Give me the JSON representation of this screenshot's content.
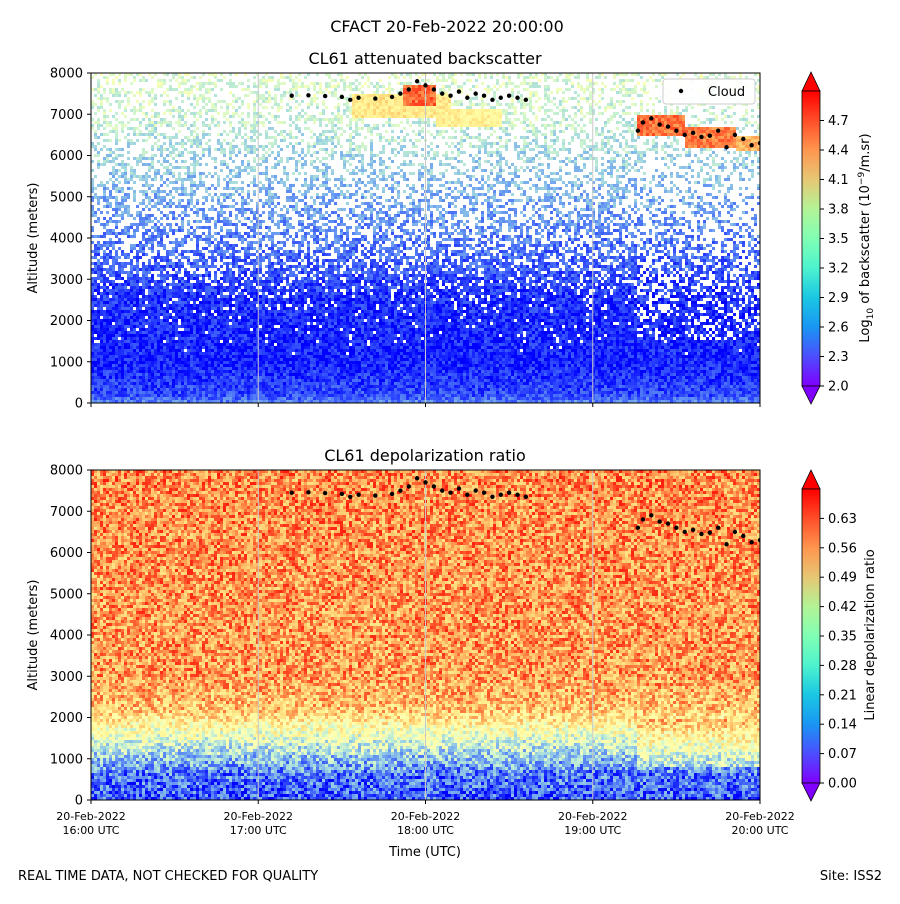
{
  "figure": {
    "suptitle": "CFACT 20-Feb-2022 20:00:00",
    "footer_left": "REAL TIME DATA, NOT CHECKED FOR QUALITY",
    "footer_right": "Site: ISS2"
  },
  "chart_data": [
    {
      "type": "heatmap",
      "title": "CL61 attenuated backscatter",
      "xlabel": "",
      "ylabel": "Altitude (meters)",
      "xlim": [
        16.0,
        20.0
      ],
      "ylim": [
        0,
        8000
      ],
      "x_ticks": [
        16,
        17,
        18,
        19,
        20
      ],
      "x_tick_labels": [
        [
          "20-Feb-2022",
          "16:00 UTC"
        ],
        [
          "20-Feb-2022",
          "17:00 UTC"
        ],
        [
          "20-Feb-2022",
          "18:00 UTC"
        ],
        [
          "20-Feb-2022",
          "19:00 UTC"
        ],
        [
          "20-Feb-2022",
          "20:00 UTC"
        ]
      ],
      "y_ticks": [
        0,
        1000,
        2000,
        3000,
        4000,
        5000,
        6000,
        7000,
        8000
      ],
      "y_tick_labels": [
        "0",
        "1000",
        "2000",
        "3000",
        "4000",
        "5000",
        "6000",
        "7000",
        "8000"
      ],
      "grid": "vertical",
      "legend": {
        "entries": [
          "Cloud"
        ],
        "placement": "top-right"
      },
      "colorbar": {
        "label_main": "Log",
        "label_sub": "10",
        "label_rest": " of backscatter (10",
        "label_sup": "−9",
        "label_end": "/m.sr)",
        "vmin": 2.0,
        "vmax": 5.0,
        "colormap": "rainbow",
        "ticks": [
          2.0,
          2.3,
          2.6,
          2.9,
          3.2,
          3.5,
          3.8,
          4.1,
          4.4,
          4.7
        ],
        "tick_labels": [
          "2.0",
          "2.3",
          "2.6",
          "2.9",
          "3.2",
          "3.5",
          "3.8",
          "4.1",
          "4.4",
          "4.7"
        ]
      },
      "field_profile": [
        {
          "alt": 0,
          "value": 2.55,
          "coverage": 1.0
        },
        {
          "alt": 200,
          "value": 2.28,
          "coverage": 1.0
        },
        {
          "alt": 1000,
          "value": 2.12,
          "coverage": 1.0
        },
        {
          "alt": 2500,
          "value": 2.18,
          "coverage": 0.9
        },
        {
          "alt": 4000,
          "value": 2.5,
          "coverage": 0.55
        },
        {
          "alt": 5500,
          "value": 2.85,
          "coverage": 0.42
        },
        {
          "alt": 7000,
          "value": 3.2,
          "coverage": 0.4
        },
        {
          "alt": 8000,
          "value": 3.3,
          "coverage": 0.4
        }
      ],
      "cloud_layers": [
        {
          "t_start": 17.55,
          "t_end": 18.15,
          "alt_low": 6900,
          "alt_high": 7500,
          "value": 3.9
        },
        {
          "t_start": 17.85,
          "t_end": 18.05,
          "alt_low": 7200,
          "alt_high": 7700,
          "value": 4.6
        },
        {
          "t_start": 18.05,
          "t_end": 18.45,
          "alt_low": 6700,
          "alt_high": 7100,
          "value": 3.8
        },
        {
          "t_start": 19.25,
          "t_end": 19.55,
          "alt_low": 6500,
          "alt_high": 6950,
          "value": 4.55
        },
        {
          "t_start": 19.55,
          "t_end": 19.85,
          "alt_low": 6200,
          "alt_high": 6700,
          "value": 4.5
        },
        {
          "t_start": 19.85,
          "t_end": 20.0,
          "alt_low": 6100,
          "alt_high": 6500,
          "value": 4.2
        }
      ]
    },
    {
      "type": "heatmap",
      "title": "CL61 depolarization ratio",
      "xlabel": "Time (UTC)",
      "ylabel": "Altitude (meters)",
      "xlim": [
        16.0,
        20.0
      ],
      "ylim": [
        0,
        8000
      ],
      "x_ticks": [
        16,
        17,
        18,
        19,
        20
      ],
      "x_tick_labels": [
        [
          "20-Feb-2022",
          "16:00 UTC"
        ],
        [
          "20-Feb-2022",
          "17:00 UTC"
        ],
        [
          "20-Feb-2022",
          "18:00 UTC"
        ],
        [
          "20-Feb-2022",
          "19:00 UTC"
        ],
        [
          "20-Feb-2022",
          "20:00 UTC"
        ]
      ],
      "y_ticks": [
        0,
        1000,
        2000,
        3000,
        4000,
        5000,
        6000,
        7000,
        8000
      ],
      "y_tick_labels": [
        "0",
        "1000",
        "2000",
        "3000",
        "4000",
        "5000",
        "6000",
        "7000",
        "8000"
      ],
      "grid": "vertical",
      "colorbar": {
        "label": "Linear depolarization ratio",
        "vmin": 0.0,
        "vmax": 0.7,
        "colormap": "rainbow",
        "ticks": [
          0.0,
          0.07,
          0.14,
          0.21,
          0.28,
          0.35,
          0.42,
          0.49,
          0.56,
          0.63
        ],
        "tick_labels": [
          "0.00",
          "0.07",
          "0.14",
          "0.21",
          "0.28",
          "0.35",
          "0.42",
          "0.49",
          "0.56",
          "0.63"
        ]
      },
      "field_profile": [
        {
          "alt": 0,
          "value": 0.08
        },
        {
          "alt": 600,
          "value": 0.11
        },
        {
          "alt": 1000,
          "value": 0.2
        },
        {
          "alt": 1600,
          "value": 0.34
        },
        {
          "alt": 2200,
          "value": 0.5
        },
        {
          "alt": 3000,
          "value": 0.55
        },
        {
          "alt": 8000,
          "value": 0.57
        }
      ]
    }
  ],
  "cloud_base": {
    "name": "Cloud",
    "points": [
      {
        "t": 17.2,
        "alt": 7450
      },
      {
        "t": 17.3,
        "alt": 7460
      },
      {
        "t": 17.4,
        "alt": 7440
      },
      {
        "t": 17.5,
        "alt": 7420
      },
      {
        "t": 17.55,
        "alt": 7350
      },
      {
        "t": 17.6,
        "alt": 7400
      },
      {
        "t": 17.7,
        "alt": 7380
      },
      {
        "t": 17.8,
        "alt": 7420
      },
      {
        "t": 17.85,
        "alt": 7500
      },
      {
        "t": 17.9,
        "alt": 7600
      },
      {
        "t": 17.95,
        "alt": 7800
      },
      {
        "t": 18.0,
        "alt": 7700
      },
      {
        "t": 18.05,
        "alt": 7600
      },
      {
        "t": 18.1,
        "alt": 7500
      },
      {
        "t": 18.15,
        "alt": 7450
      },
      {
        "t": 18.2,
        "alt": 7550
      },
      {
        "t": 18.25,
        "alt": 7400
      },
      {
        "t": 18.3,
        "alt": 7500
      },
      {
        "t": 18.35,
        "alt": 7450
      },
      {
        "t": 18.4,
        "alt": 7350
      },
      {
        "t": 18.45,
        "alt": 7400
      },
      {
        "t": 18.5,
        "alt": 7450
      },
      {
        "t": 18.55,
        "alt": 7400
      },
      {
        "t": 18.6,
        "alt": 7350
      },
      {
        "t": 19.27,
        "alt": 6600
      },
      {
        "t": 19.3,
        "alt": 6800
      },
      {
        "t": 19.35,
        "alt": 6900
      },
      {
        "t": 19.4,
        "alt": 6750
      },
      {
        "t": 19.45,
        "alt": 6700
      },
      {
        "t": 19.5,
        "alt": 6600
      },
      {
        "t": 19.55,
        "alt": 6500
      },
      {
        "t": 19.6,
        "alt": 6550
      },
      {
        "t": 19.65,
        "alt": 6450
      },
      {
        "t": 19.7,
        "alt": 6480
      },
      {
        "t": 19.75,
        "alt": 6600
      },
      {
        "t": 19.8,
        "alt": 6200
      },
      {
        "t": 19.85,
        "alt": 6500
      },
      {
        "t": 19.9,
        "alt": 6400
      },
      {
        "t": 19.95,
        "alt": 6250
      },
      {
        "t": 20.0,
        "alt": 6300
      }
    ]
  }
}
